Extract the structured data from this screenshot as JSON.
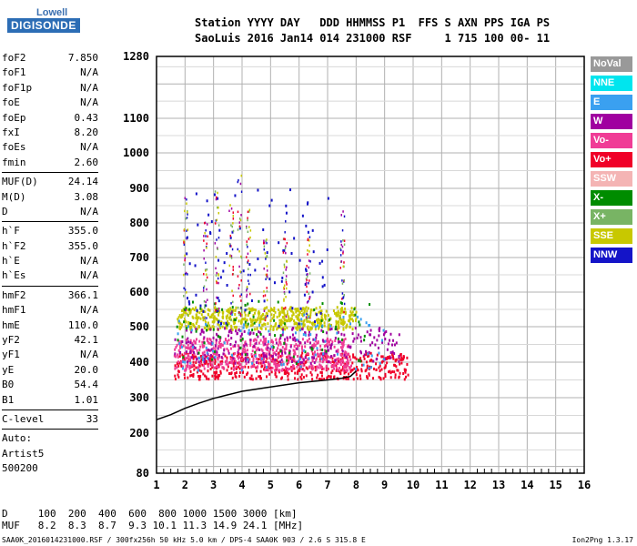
{
  "logo": {
    "top": "Lowell",
    "main": "DIGISONDE"
  },
  "header": {
    "line1": "Station YYYY DAY   DDD HHMMSS P1  FFS S AXN PPS IGA PS",
    "line2": "SaoLuis 2016 Jan14 014 231000 RSF     1 715 100 00- 11"
  },
  "params": {
    "group1": [
      {
        "name": "foF2",
        "value": "7.850"
      },
      {
        "name": "foF1",
        "value": "N/A"
      },
      {
        "name": "foF1p",
        "value": "N/A"
      },
      {
        "name": "foE",
        "value": "N/A"
      },
      {
        "name": "foEp",
        "value": "0.43"
      },
      {
        "name": "fxI",
        "value": "8.20"
      },
      {
        "name": "foEs",
        "value": "N/A"
      },
      {
        "name": "fmin",
        "value": "2.60"
      }
    ],
    "group2": [
      {
        "name": "MUF(D)",
        "value": "24.14"
      },
      {
        "name": "M(D)",
        "value": "3.08"
      },
      {
        "name": "D",
        "value": "N/A"
      }
    ],
    "group3": [
      {
        "name": "h`F",
        "value": "355.0"
      },
      {
        "name": "h`F2",
        "value": "355.0"
      },
      {
        "name": "h`E",
        "value": "N/A"
      },
      {
        "name": "h`Es",
        "value": "N/A"
      }
    ],
    "group4": [
      {
        "name": "hmF2",
        "value": "366.1"
      },
      {
        "name": "hmF1",
        "value": "N/A"
      },
      {
        "name": "hmE",
        "value": "110.0"
      },
      {
        "name": "yF2",
        "value": "42.1"
      },
      {
        "name": "yF1",
        "value": "N/A"
      },
      {
        "name": "yE",
        "value": "20.0"
      },
      {
        "name": "B0",
        "value": "54.4"
      },
      {
        "name": "B1",
        "value": "1.01"
      }
    ],
    "group5": [
      {
        "name": "C-level",
        "value": "33"
      }
    ]
  },
  "auto": {
    "line1": "Auto:",
    "line2": "Artist5",
    "line3": "500200"
  },
  "legend": [
    {
      "label": "NoVal",
      "color": "#999999"
    },
    {
      "label": "NNE",
      "color": "#00e5ee"
    },
    {
      "label": "E",
      "color": "#3aa0f0"
    },
    {
      "label": "W",
      "color": "#a000a0"
    },
    {
      "label": "Vo-",
      "color": "#f03c96"
    },
    {
      "label": "Vo+",
      "color": "#f00028"
    },
    {
      "label": "SSW",
      "color": "#f4b4b4"
    },
    {
      "label": "X-",
      "color": "#008c00"
    },
    {
      "label": "X+",
      "color": "#78b464"
    },
    {
      "label": "SSE",
      "color": "#c8c800"
    },
    {
      "label": "NNW",
      "color": "#1414c8"
    }
  ],
  "footer": {
    "d_row": "D     100  200  400  600  800 1000 1500 3000 [km]",
    "muf_row": "MUF   8.2  8.3  8.7  9.3 10.1 11.3 14.9 24.1 [MHz]",
    "bottom_left": "SAA0K_2016014231000.RSF / 300fx256h 50 kHz 5.0 km / DPS-4 SAA0K 903 / 2.6 S 315.8 E",
    "bottom_right": "Ion2Png 1.3.17"
  },
  "chart_data": {
    "type": "scatter",
    "xlabel": "",
    "ylabel": "",
    "xlim": [
      1,
      16
    ],
    "ylim": [
      80,
      1280
    ],
    "x_ticks": [
      "1",
      "2",
      "3",
      "4",
      "5",
      "6",
      "7",
      "8",
      "9",
      "10",
      "11",
      "12",
      "13",
      "14",
      "15",
      "16"
    ],
    "y_ticks": [
      "80",
      "200",
      "300",
      "400",
      "500",
      "600",
      "700",
      "800",
      "900",
      "1000",
      "1100",
      "1280"
    ],
    "y_scale": "nonlinear",
    "grid": true,
    "clusters": [
      {
        "series": "SSE",
        "x": [
          1.7,
          8.0
        ],
        "y": [
          495,
          560
        ],
        "density": "high"
      },
      {
        "series": "Vo+",
        "x": [
          1.6,
          9.8
        ],
        "y": [
          355,
          430
        ],
        "density": "high"
      },
      {
        "series": "Vo-",
        "x": [
          1.6,
          7.8
        ],
        "y": [
          380,
          470
        ],
        "density": "high"
      },
      {
        "series": "W",
        "x": [
          1.6,
          9.5
        ],
        "y": [
          400,
          500
        ],
        "density": "medium"
      },
      {
        "series": "X-",
        "x": [
          1.6,
          8.6
        ],
        "y": [
          400,
          580
        ],
        "density": "low"
      },
      {
        "series": "E",
        "x": [
          1.7,
          9.0
        ],
        "y": [
          380,
          540
        ],
        "density": "low"
      },
      {
        "series": "NNW",
        "x": [
          2.0,
          7.0
        ],
        "y": [
          500,
          900
        ],
        "density": "low"
      }
    ],
    "trace": {
      "x": [
        1.0,
        1.5,
        2.0,
        2.5,
        3.0,
        3.5,
        4.0,
        5.0,
        6.0,
        7.0,
        7.5,
        7.8,
        8.0
      ],
      "y": [
        238,
        252,
        270,
        285,
        298,
        308,
        318,
        330,
        342,
        350,
        355,
        360,
        375
      ]
    }
  }
}
